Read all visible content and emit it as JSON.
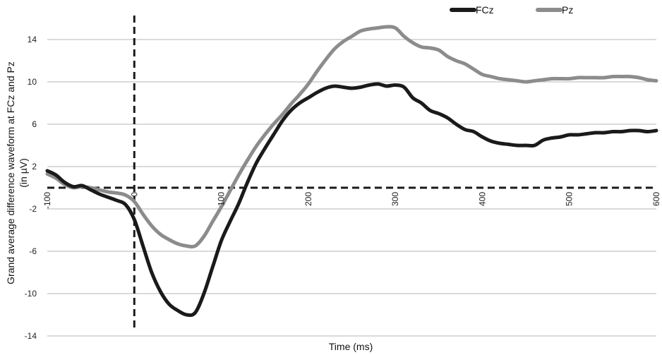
{
  "chart_data": {
    "type": "line",
    "xlabel": "Time (ms)",
    "ylabel_lines": [
      "Grand average difference waveform at FCz and Pz",
      "(in µV)"
    ],
    "xlim": [
      -100,
      600
    ],
    "ylim": [
      -14,
      16
    ],
    "x_ticks": [
      -100,
      0,
      100,
      200,
      300,
      400,
      500,
      600
    ],
    "x_tick_labels": [
      "-100",
      "0",
      "100",
      "200",
      "300",
      "400",
      "500",
      "600"
    ],
    "y_ticks": [
      -14,
      -10,
      -6,
      -2,
      2,
      6,
      10,
      14
    ],
    "y_tick_labels": [
      "-14",
      "-10",
      "-6",
      "-2",
      "2",
      "6",
      "10",
      "14"
    ],
    "grid": "horizontal",
    "legend_position": "top-right",
    "reference_lines": {
      "x_onset": 0,
      "y_zero": 0
    },
    "series": [
      {
        "name": "FCz",
        "color": "#1a1a1a",
        "x": [
          -100,
          -90,
          -80,
          -70,
          -60,
          -50,
          -40,
          -30,
          -20,
          -10,
          0,
          10,
          20,
          30,
          40,
          50,
          60,
          70,
          80,
          90,
          100,
          110,
          120,
          130,
          140,
          150,
          160,
          170,
          180,
          190,
          200,
          210,
          220,
          230,
          240,
          250,
          260,
          270,
          280,
          290,
          300,
          310,
          320,
          330,
          340,
          350,
          360,
          370,
          380,
          390,
          400,
          410,
          420,
          430,
          440,
          450,
          460,
          470,
          480,
          490,
          500,
          510,
          520,
          530,
          540,
          550,
          560,
          570,
          580,
          590,
          600
        ],
        "y": [
          1.6,
          1.2,
          0.5,
          0.1,
          0.2,
          -0.2,
          -0.6,
          -0.9,
          -1.2,
          -1.6,
          -3.0,
          -5.5,
          -8.0,
          -9.8,
          -11.0,
          -11.6,
          -12.0,
          -11.8,
          -10.0,
          -7.5,
          -5.0,
          -3.2,
          -1.5,
          0.5,
          2.3,
          3.7,
          5.0,
          6.3,
          7.3,
          8.0,
          8.5,
          9.0,
          9.4,
          9.6,
          9.5,
          9.4,
          9.5,
          9.7,
          9.8,
          9.6,
          9.7,
          9.5,
          8.5,
          8.0,
          7.3,
          7.0,
          6.6,
          6.0,
          5.5,
          5.3,
          4.8,
          4.4,
          4.2,
          4.1,
          4.0,
          4.0,
          4.0,
          4.5,
          4.7,
          4.8,
          5.0,
          5.0,
          5.1,
          5.2,
          5.2,
          5.3,
          5.3,
          5.4,
          5.4,
          5.3,
          5.4
        ]
      },
      {
        "name": "Pz",
        "color": "#8c8c8c",
        "x": [
          -100,
          -90,
          -80,
          -70,
          -60,
          -50,
          -40,
          -30,
          -20,
          -10,
          0,
          10,
          20,
          30,
          40,
          50,
          60,
          70,
          80,
          90,
          100,
          110,
          120,
          130,
          140,
          150,
          160,
          170,
          180,
          190,
          200,
          210,
          220,
          230,
          240,
          250,
          260,
          270,
          280,
          290,
          300,
          310,
          320,
          330,
          340,
          350,
          360,
          370,
          380,
          390,
          400,
          410,
          420,
          430,
          440,
          450,
          460,
          470,
          480,
          490,
          500,
          510,
          520,
          530,
          540,
          550,
          560,
          570,
          580,
          590,
          600
        ],
        "y": [
          1.3,
          0.9,
          0.3,
          0.0,
          0.1,
          0.0,
          -0.2,
          -0.4,
          -0.5,
          -0.7,
          -1.3,
          -2.5,
          -3.6,
          -4.4,
          -4.9,
          -5.3,
          -5.5,
          -5.5,
          -4.6,
          -3.2,
          -1.8,
          -0.3,
          1.2,
          2.6,
          3.9,
          5.0,
          6.0,
          6.9,
          7.9,
          8.8,
          9.8,
          11.0,
          12.1,
          13.1,
          13.8,
          14.3,
          14.8,
          15.0,
          15.1,
          15.2,
          15.1,
          14.3,
          13.7,
          13.3,
          13.2,
          13.0,
          12.4,
          12.0,
          11.7,
          11.2,
          10.7,
          10.5,
          10.3,
          10.2,
          10.1,
          10.0,
          10.1,
          10.2,
          10.3,
          10.3,
          10.3,
          10.4,
          10.4,
          10.4,
          10.4,
          10.5,
          10.5,
          10.5,
          10.4,
          10.2,
          10.1
        ]
      }
    ]
  }
}
